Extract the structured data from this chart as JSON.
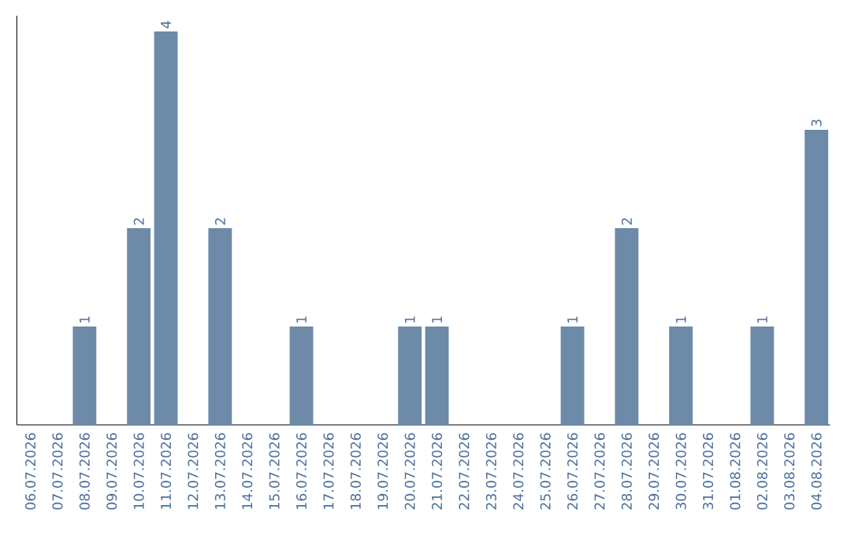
{
  "chart_data": {
    "type": "bar",
    "categories": [
      "06.07.2026",
      "07.07.2026",
      "08.07.2026",
      "09.07.2026",
      "10.07.2026",
      "11.07.2026",
      "12.07.2026",
      "13.07.2026",
      "14.07.2026",
      "15.07.2026",
      "16.07.2026",
      "17.07.2026",
      "18.07.2026",
      "19.07.2026",
      "20.07.2026",
      "21.07.2026",
      "22.07.2026",
      "23.07.2026",
      "24.07.2026",
      "25.07.2026",
      "26.07.2026",
      "27.07.2026",
      "28.07.2026",
      "29.07.2026",
      "30.07.2026",
      "31.07.2026",
      "01.08.2026",
      "02.08.2026",
      "03.08.2026",
      "04.08.2026"
    ],
    "values": [
      0,
      0,
      1,
      0,
      2,
      4,
      0,
      2,
      0,
      0,
      1,
      0,
      0,
      0,
      1,
      1,
      0,
      0,
      0,
      0,
      1,
      0,
      2,
      0,
      1,
      0,
      0,
      1,
      0,
      3
    ],
    "value_labels": [
      null,
      null,
      "1",
      null,
      "2",
      "4",
      null,
      "2",
      null,
      null,
      "1",
      null,
      null,
      null,
      "1",
      "1",
      null,
      null,
      null,
      null,
      "1",
      null,
      "2",
      null,
      "1",
      null,
      null,
      "1",
      null,
      "3"
    ],
    "color": "#6d8aa8"
  }
}
